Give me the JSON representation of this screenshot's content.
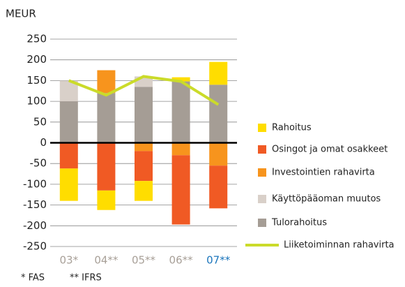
{
  "chart_data": {
    "type": "bar",
    "stacked": true,
    "unit_label": "MEUR",
    "categories": [
      "03*",
      "04**",
      "05**",
      "06**",
      "07**"
    ],
    "category_label_colors": [
      "#a8a098",
      "#a8a098",
      "#a8a098",
      "#a8a098",
      "#1b75bc"
    ],
    "series": [
      {
        "name": "Rahoitus",
        "color": "#ffdd00",
        "values": [
          -78,
          -47,
          -48,
          10,
          55
        ]
      },
      {
        "name": "Osingot ja omat osakkeet",
        "color": "#f05a24",
        "values": [
          -62,
          -115,
          -72,
          -167,
          -103
        ]
      },
      {
        "name": "Investointien rahavirta",
        "color": "#f7941d",
        "values": [
          0,
          55,
          -20,
          -30,
          -55
        ]
      },
      {
        "name": "Käyttöpääoman muutos",
        "color": "#d9d0c9",
        "values": [
          50,
          0,
          25,
          0,
          0
        ]
      },
      {
        "name": "Tulorahoitus",
        "color": "#a59d95",
        "values": [
          100,
          120,
          135,
          148,
          140
        ]
      },
      {
        "name": "Liiketoiminnan rahavirta",
        "type": "line",
        "color": "#cbdb2a",
        "values": [
          150,
          115,
          160,
          148,
          92
        ]
      }
    ],
    "ylim": [
      -250,
      250
    ],
    "yticks": [
      -250,
      -200,
      -150,
      -100,
      -50,
      0,
      50,
      100,
      150,
      200,
      250
    ],
    "grid": true,
    "legend": "right",
    "footnotes": [
      "*  FAS",
      "**  IFRS"
    ]
  }
}
